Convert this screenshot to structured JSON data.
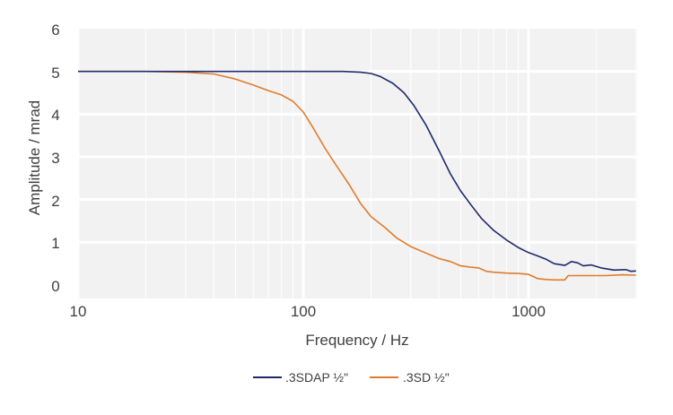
{
  "chart_data": {
    "type": "line",
    "title": "",
    "xlabel": "Frequency / Hz",
    "ylabel": "Amplitude / mrad",
    "xscale": "log",
    "xlim": [
      10,
      3000
    ],
    "ylim": [
      0,
      6
    ],
    "x_ticks": [
      10,
      100,
      1000
    ],
    "x_tick_labels": [
      "10",
      "100",
      "1000"
    ],
    "y_ticks": [
      0,
      1,
      2,
      3,
      4,
      5,
      6
    ],
    "y_tick_labels": [
      "0",
      "1",
      "2",
      "3",
      "4",
      "5",
      "6"
    ],
    "grid": true,
    "legend_position": "bottom",
    "colors": {
      "plot_bg": "#f2f2f2",
      "grid": "#ffffff"
    },
    "series": [
      {
        "name": ".3SDAP ½\"",
        "color": "#1f2a6b",
        "points": [
          [
            10,
            5.0
          ],
          [
            20,
            5.0
          ],
          [
            50,
            5.0
          ],
          [
            100,
            5.0
          ],
          [
            150,
            5.0
          ],
          [
            180,
            4.98
          ],
          [
            200,
            4.95
          ],
          [
            220,
            4.88
          ],
          [
            250,
            4.72
          ],
          [
            280,
            4.5
          ],
          [
            310,
            4.2
          ],
          [
            350,
            3.75
          ],
          [
            400,
            3.15
          ],
          [
            450,
            2.6
          ],
          [
            500,
            2.2
          ],
          [
            560,
            1.85
          ],
          [
            620,
            1.55
          ],
          [
            700,
            1.28
          ],
          [
            800,
            1.05
          ],
          [
            900,
            0.88
          ],
          [
            1000,
            0.76
          ],
          [
            1100,
            0.68
          ],
          [
            1200,
            0.6
          ],
          [
            1300,
            0.5
          ],
          [
            1450,
            0.46
          ],
          [
            1550,
            0.55
          ],
          [
            1650,
            0.52
          ],
          [
            1750,
            0.45
          ],
          [
            1900,
            0.47
          ],
          [
            2100,
            0.4
          ],
          [
            2400,
            0.35
          ],
          [
            2700,
            0.36
          ],
          [
            2850,
            0.32
          ],
          [
            3000,
            0.33
          ]
        ]
      },
      {
        "name": ".3SD ½\"",
        "color": "#e07b2a",
        "points": [
          [
            10,
            5.0
          ],
          [
            20,
            5.0
          ],
          [
            30,
            4.98
          ],
          [
            40,
            4.94
          ],
          [
            50,
            4.82
          ],
          [
            60,
            4.68
          ],
          [
            70,
            4.55
          ],
          [
            80,
            4.45
          ],
          [
            90,
            4.3
          ],
          [
            100,
            4.05
          ],
          [
            110,
            3.7
          ],
          [
            125,
            3.2
          ],
          [
            140,
            2.8
          ],
          [
            160,
            2.35
          ],
          [
            180,
            1.9
          ],
          [
            200,
            1.6
          ],
          [
            230,
            1.35
          ],
          [
            260,
            1.1
          ],
          [
            300,
            0.9
          ],
          [
            350,
            0.75
          ],
          [
            400,
            0.62
          ],
          [
            450,
            0.55
          ],
          [
            500,
            0.45
          ],
          [
            550,
            0.42
          ],
          [
            600,
            0.4
          ],
          [
            650,
            0.32
          ],
          [
            700,
            0.3
          ],
          [
            800,
            0.28
          ],
          [
            900,
            0.27
          ],
          [
            1000,
            0.25
          ],
          [
            1050,
            0.2
          ],
          [
            1100,
            0.15
          ],
          [
            1200,
            0.13
          ],
          [
            1300,
            0.12
          ],
          [
            1450,
            0.12
          ],
          [
            1500,
            0.22
          ],
          [
            1800,
            0.22
          ],
          [
            2200,
            0.22
          ],
          [
            2600,
            0.24
          ],
          [
            3000,
            0.23
          ]
        ]
      }
    ]
  }
}
